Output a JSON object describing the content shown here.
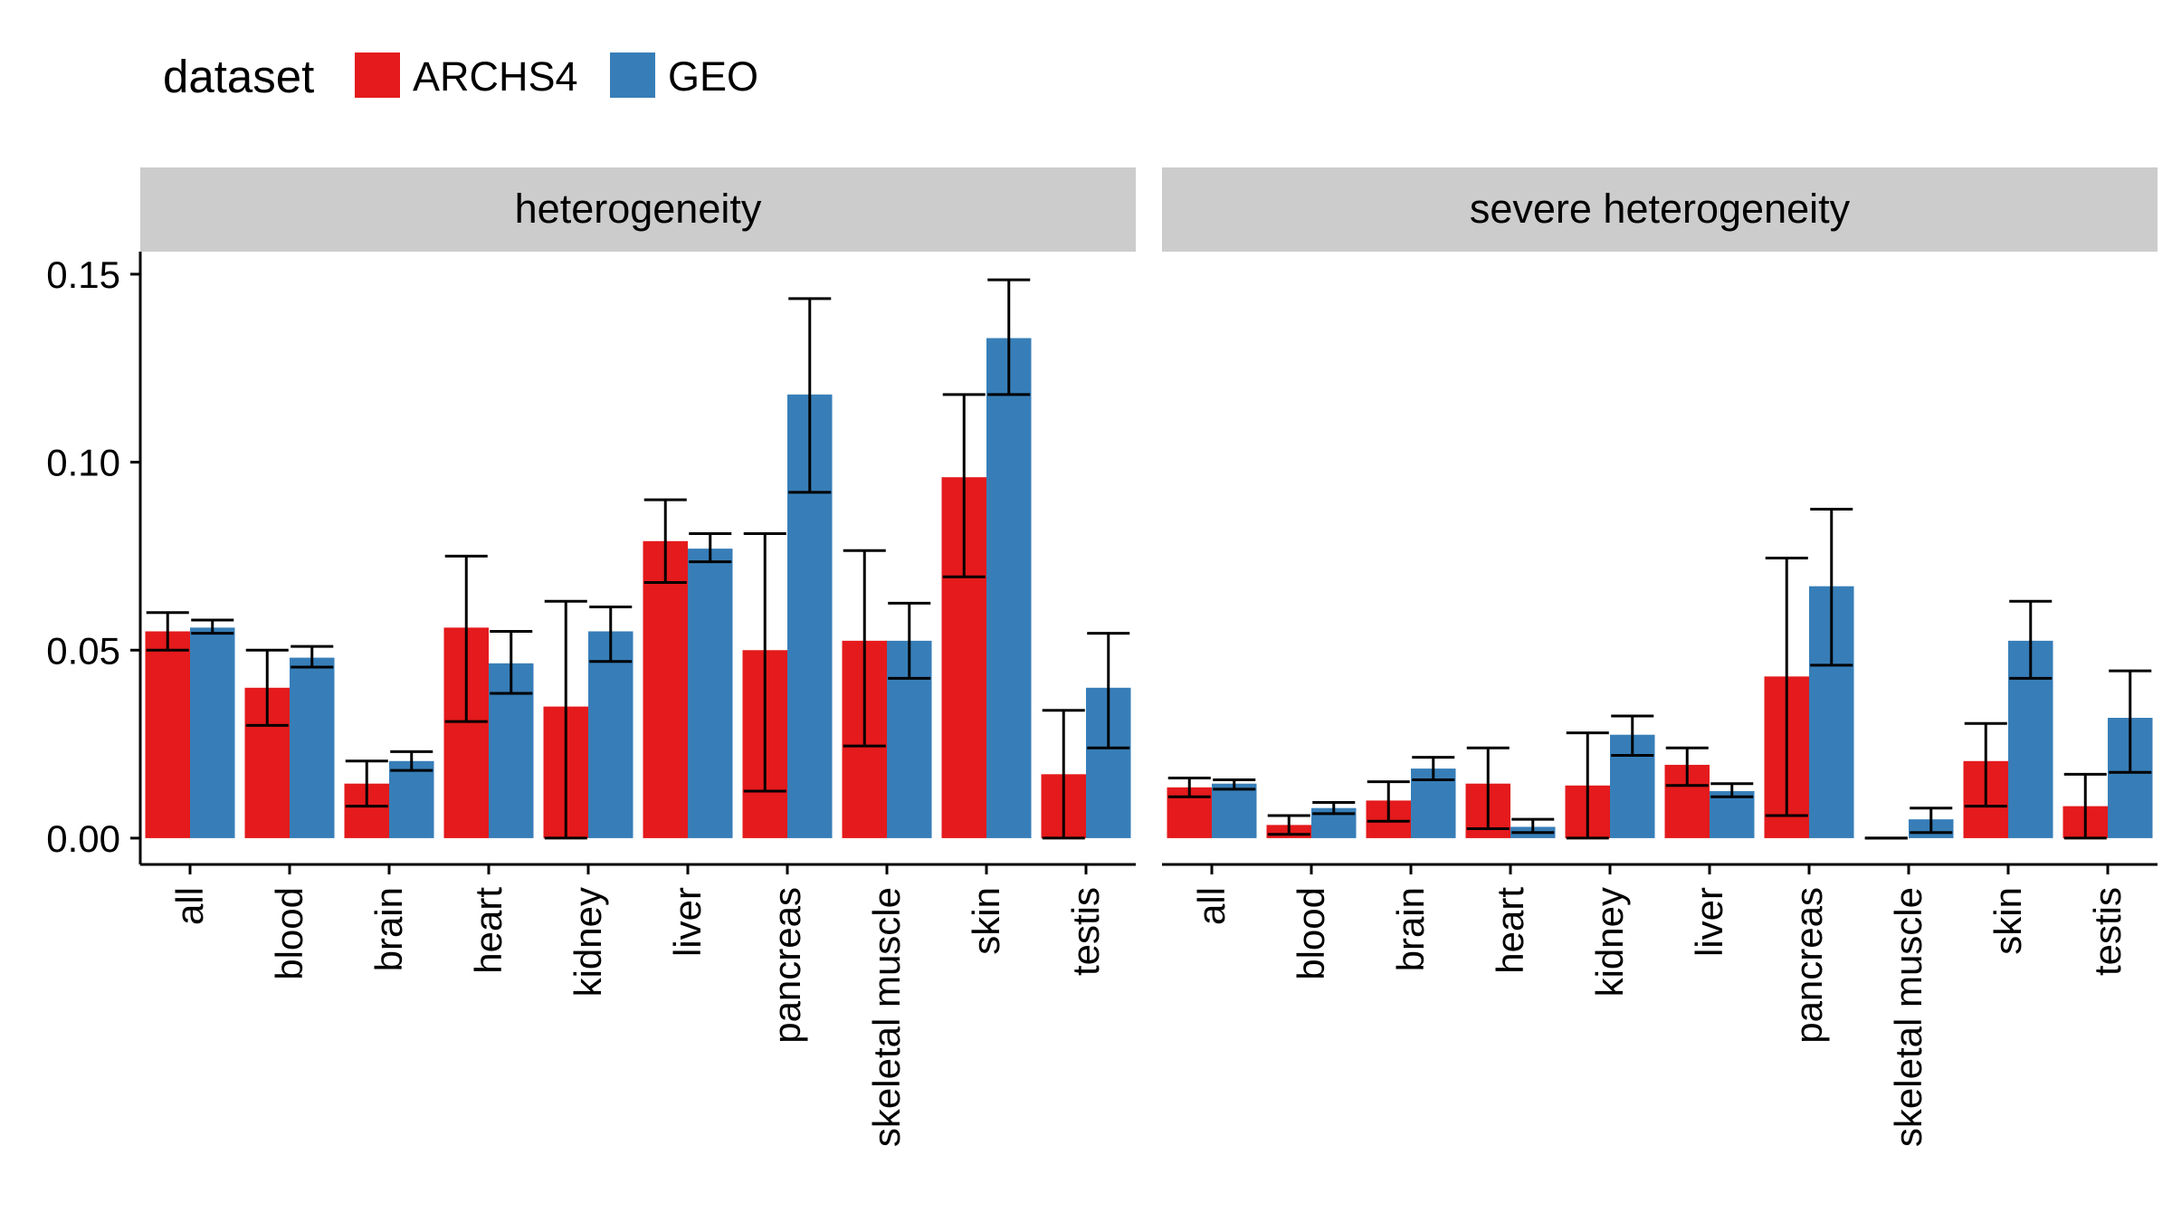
{
  "chart_data": {
    "type": "bar",
    "legend": {
      "title": "dataset",
      "position": "top-left",
      "entries": [
        {
          "name": "ARCHS4",
          "color": "#e41a1c"
        },
        {
          "name": "GEO",
          "color": "#377eb8"
        }
      ]
    },
    "categories": [
      "all",
      "blood",
      "brain",
      "heart",
      "kidney",
      "liver",
      "pancreas",
      "skeletal muscle",
      "skin",
      "testis"
    ],
    "ylim": [
      -0.007,
      0.156
    ],
    "yticks": [
      "0.00",
      "0.05",
      "0.10",
      "0.15"
    ],
    "ytick_values": [
      0,
      0.05,
      0.1,
      0.15
    ],
    "xlabel": "",
    "ylabel": "",
    "grid": false,
    "panels": [
      {
        "title": "heterogeneity",
        "series": [
          {
            "name": "ARCHS4",
            "values": [
              0.055,
              0.04,
              0.0145,
              0.056,
              0.035,
              0.079,
              0.05,
              0.0525,
              0.096,
              0.017
            ],
            "err_low": [
              0.05,
              0.03,
              0.0085,
              0.031,
              0.0,
              0.068,
              0.0125,
              0.0245,
              0.0695,
              0.0
            ],
            "err_high": [
              0.06,
              0.05,
              0.0205,
              0.075,
              0.063,
              0.09,
              0.081,
              0.0765,
              0.118,
              0.034
            ]
          },
          {
            "name": "GEO",
            "values": [
              0.056,
              0.048,
              0.0205,
              0.0465,
              0.055,
              0.077,
              0.118,
              0.0525,
              0.133,
              0.04
            ],
            "err_low": [
              0.0545,
              0.0455,
              0.018,
              0.0385,
              0.047,
              0.0735,
              0.092,
              0.0425,
              0.118,
              0.024
            ],
            "err_high": [
              0.058,
              0.051,
              0.023,
              0.055,
              0.0615,
              0.081,
              0.1435,
              0.0625,
              0.1485,
              0.0545
            ]
          }
        ]
      },
      {
        "title": "severe heterogeneity",
        "series": [
          {
            "name": "ARCHS4",
            "values": [
              0.0135,
              0.0035,
              0.01,
              0.0145,
              0.014,
              0.0195,
              0.043,
              0.0,
              0.0205,
              0.0085
            ],
            "err_low": [
              0.011,
              0.001,
              0.0045,
              0.0025,
              0.0,
              0.014,
              0.006,
              0.0,
              0.0085,
              0.0
            ],
            "err_high": [
              0.016,
              0.006,
              0.015,
              0.024,
              0.028,
              0.024,
              0.0745,
              0.0,
              0.0305,
              0.017
            ]
          },
          {
            "name": "GEO",
            "values": [
              0.0145,
              0.008,
              0.0185,
              0.003,
              0.0275,
              0.0125,
              0.067,
              0.005,
              0.0525,
              0.032
            ],
            "err_low": [
              0.013,
              0.0065,
              0.0155,
              0.0015,
              0.022,
              0.011,
              0.046,
              0.0015,
              0.0425,
              0.0175
            ],
            "err_high": [
              0.0155,
              0.0095,
              0.0215,
              0.005,
              0.0325,
              0.0145,
              0.0875,
              0.008,
              0.063,
              0.0445
            ]
          }
        ]
      }
    ]
  }
}
